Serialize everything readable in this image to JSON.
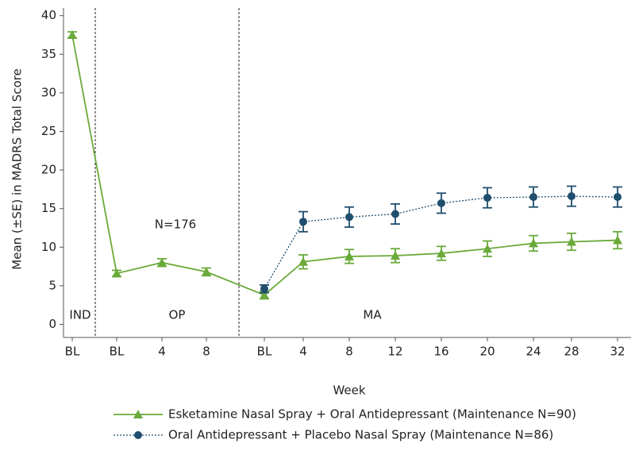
{
  "chart_data": {
    "type": "line",
    "y_label": "Mean (±SE) in MADRS Total Score",
    "x_label": "Week",
    "categories": [
      "BL",
      "BL",
      "4",
      "8",
      "BL",
      "4",
      "8",
      "12",
      "16",
      "20",
      "24",
      "28",
      "32"
    ],
    "annotations": [
      "IND",
      "OP",
      "MA",
      "N=176"
    ],
    "ylim": [
      -1.7,
      41
    ],
    "yticks": [
      0,
      5,
      10,
      15,
      20,
      25,
      30,
      35,
      40
    ],
    "series": [
      {
        "name": "Esketamine Nasal Spray + Oral Antidepressant (Maintenance N=90)",
        "color": "#6aaa3a",
        "marker": "triangle",
        "dash": "solid",
        "values": [
          37.5,
          6.6,
          8.0,
          6.8,
          3.8,
          8.1,
          8.8,
          8.9,
          9.2,
          9.8,
          10.5,
          10.7,
          10.9
        ],
        "errors": [
          0.4,
          0.4,
          0.5,
          0.5,
          0.5,
          0.9,
          0.9,
          0.9,
          0.9,
          1.0,
          1.0,
          1.1,
          1.1
        ]
      },
      {
        "name": "Oral Antidepressant + Placebo Nasal Spray (Maintenance N=86)",
        "color": "#1f4e6e",
        "marker": "circle",
        "dash": "dotted",
        "values": [
          null,
          null,
          null,
          null,
          4.6,
          13.3,
          13.9,
          14.3,
          15.7,
          16.4,
          16.5,
          16.6,
          16.5
        ],
        "errors": [
          null,
          null,
          null,
          null,
          0.5,
          1.3,
          1.3,
          1.3,
          1.3,
          1.3,
          1.3,
          1.3,
          1.3
        ]
      }
    ]
  }
}
